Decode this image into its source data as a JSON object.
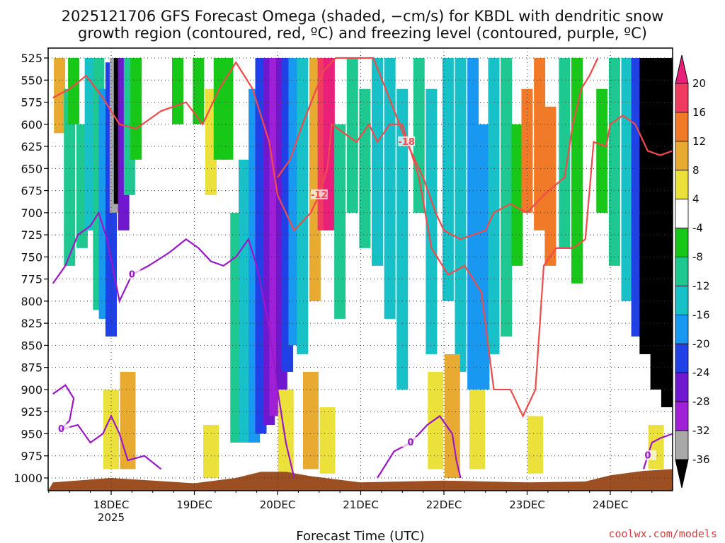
{
  "chart_data": {
    "type": "heatmap",
    "title_line1": "2025121706 GFS Forecast Omega (shaded, −cm/s) for KBDL with dendritic snow",
    "title_line2": "growth region (contoured, red, ºC) and freezing level (contoured, purple, ºC)",
    "xlabel": "Forecast Time (UTC)",
    "credit": "coolwx.com/models",
    "run": "2025121706",
    "model": "GFS",
    "station": "KBDL",
    "x_range_days": [
      -0.7,
      6.75
    ],
    "x_ticks": [
      {
        "pos": 0,
        "label": "18DEC",
        "sub": "2025"
      },
      {
        "pos": 1,
        "label": "19DEC",
        "sub": ""
      },
      {
        "pos": 2,
        "label": "20DEC",
        "sub": ""
      },
      {
        "pos": 3,
        "label": "21DEC",
        "sub": ""
      },
      {
        "pos": 4,
        "label": "22DEC",
        "sub": ""
      },
      {
        "pos": 5,
        "label": "23DEC",
        "sub": ""
      },
      {
        "pos": 6,
        "label": "24DEC",
        "sub": ""
      }
    ],
    "y_range_hpa": [
      1010,
      515
    ],
    "y_ticks": [
      "525",
      "550",
      "575",
      "600",
      "625",
      "650",
      "675",
      "700",
      "725",
      "750",
      "775",
      "800",
      "825",
      "850",
      "875",
      "900",
      "925",
      "950",
      "975",
      "1000"
    ],
    "colorbar": {
      "min": -36,
      "max": 20,
      "labels": [
        "20",
        "16",
        "12",
        "8",
        "4",
        "-4",
        "-8",
        "-12",
        "-16",
        "-20",
        "-24",
        "-28",
        "-32",
        "-36"
      ],
      "bins": [
        {
          "lo": 16,
          "hi": 20,
          "color": "#f03a60"
        },
        {
          "lo": 12,
          "hi": 16,
          "color": "#f07a28"
        },
        {
          "lo": 8,
          "hi": 12,
          "color": "#e8aa30"
        },
        {
          "lo": 4,
          "hi": 8,
          "color": "#ece03a"
        },
        {
          "lo": -4,
          "hi": 4,
          "color": "#ffffff"
        },
        {
          "lo": -8,
          "hi": -4,
          "color": "#18c818"
        },
        {
          "lo": -12,
          "hi": -8,
          "color": "#1ec890"
        },
        {
          "lo": -16,
          "hi": -12,
          "color": "#18c0c8"
        },
        {
          "lo": -20,
          "hi": -16,
          "color": "#1898f0"
        },
        {
          "lo": -24,
          "hi": -20,
          "color": "#2040e8"
        },
        {
          "lo": -28,
          "hi": -24,
          "color": "#7018d0"
        },
        {
          "lo": -32,
          "hi": -28,
          "color": "#a020d8"
        },
        {
          "lo": -36,
          "hi": -32,
          "color": "#a8a8a8"
        }
      ],
      "over_color": "#e8207a",
      "under_color": "#000000"
    },
    "omega_columns": [
      {
        "t": -0.62,
        "p1": 525,
        "p2": 610,
        "v": 9
      },
      {
        "t": -0.5,
        "p1": 560,
        "p2": 760,
        "v": -10
      },
      {
        "t": -0.45,
        "p1": 525,
        "p2": 600,
        "v": -6
      },
      {
        "t": -0.35,
        "p1": 600,
        "p2": 740,
        "v": -9
      },
      {
        "t": -0.25,
        "p1": 525,
        "p2": 720,
        "v": -13
      },
      {
        "t": -0.15,
        "p1": 525,
        "p2": 810,
        "v": -12
      },
      {
        "t": -0.08,
        "p1": 560,
        "p2": 820,
        "v": -17
      },
      {
        "t": 0.0,
        "p1": 530,
        "p2": 840,
        "v": -24
      },
      {
        "t": 0.05,
        "p1": 525,
        "p2": 700,
        "v": -34
      },
      {
        "t": 0.1,
        "p1": 525,
        "p2": 690,
        "v": -40
      },
      {
        "t": 0.15,
        "p1": 525,
        "p2": 720,
        "v": -28
      },
      {
        "t": 0.22,
        "p1": 525,
        "p2": 680,
        "v": -12
      },
      {
        "t": 0.3,
        "p1": 525,
        "p2": 640,
        "v": -6
      },
      {
        "t": 0.8,
        "p1": 525,
        "p2": 600,
        "v": -6
      },
      {
        "t": 1.05,
        "p1": 525,
        "p2": 600,
        "v": -6
      },
      {
        "t": 1.2,
        "p1": 560,
        "p2": 680,
        "v": 6
      },
      {
        "t": 1.3,
        "p1": 525,
        "p2": 640,
        "v": -8
      },
      {
        "t": 1.4,
        "p1": 525,
        "p2": 640,
        "v": -6
      },
      {
        "t": 1.5,
        "p1": 700,
        "p2": 960,
        "v": -9
      },
      {
        "t": 1.6,
        "p1": 640,
        "p2": 960,
        "v": -13
      },
      {
        "t": 1.72,
        "p1": 560,
        "p2": 960,
        "v": -18
      },
      {
        "t": 1.8,
        "p1": 525,
        "p2": 950,
        "v": -22
      },
      {
        "t": 1.9,
        "p1": 525,
        "p2": 940,
        "v": -26
      },
      {
        "t": 1.97,
        "p1": 525,
        "p2": 930,
        "v": -29
      },
      {
        "t": 2.05,
        "p1": 525,
        "p2": 900,
        "v": -28
      },
      {
        "t": 2.12,
        "p1": 525,
        "p2": 880,
        "v": -22
      },
      {
        "t": 2.2,
        "p1": 525,
        "p2": 850,
        "v": -19
      },
      {
        "t": 2.3,
        "p1": 525,
        "p2": 860,
        "v": -13
      },
      {
        "t": 2.45,
        "p1": 525,
        "p2": 800,
        "v": 8
      },
      {
        "t": 2.55,
        "p1": 525,
        "p2": 720,
        "v": 19
      },
      {
        "t": 2.62,
        "p1": 525,
        "p2": 720,
        "v": 24
      },
      {
        "t": 2.75,
        "p1": 600,
        "p2": 820,
        "v": -10
      },
      {
        "t": 2.9,
        "p1": 525,
        "p2": 700,
        "v": -9
      },
      {
        "t": 3.05,
        "p1": 560,
        "p2": 740,
        "v": -12
      },
      {
        "t": 3.2,
        "p1": 525,
        "p2": 760,
        "v": -13
      },
      {
        "t": 3.35,
        "p1": 525,
        "p2": 820,
        "v": -14
      },
      {
        "t": 3.5,
        "p1": 560,
        "p2": 900,
        "v": -13
      },
      {
        "t": 3.7,
        "p1": 525,
        "p2": 700,
        "v": -11
      },
      {
        "t": 3.85,
        "p1": 560,
        "p2": 860,
        "v": -14
      },
      {
        "t": 4.05,
        "p1": 525,
        "p2": 800,
        "v": -13
      },
      {
        "t": 4.2,
        "p1": 525,
        "p2": 880,
        "v": -15
      },
      {
        "t": 4.35,
        "p1": 525,
        "p2": 900,
        "v": -17
      },
      {
        "t": 4.48,
        "p1": 600,
        "p2": 900,
        "v": -20
      },
      {
        "t": 4.6,
        "p1": 525,
        "p2": 860,
        "v": -15
      },
      {
        "t": 4.75,
        "p1": 525,
        "p2": 840,
        "v": -10
      },
      {
        "t": 4.88,
        "p1": 600,
        "p2": 760,
        "v": -8
      },
      {
        "t": 5.0,
        "p1": 560,
        "p2": 700,
        "v": 13
      },
      {
        "t": 5.15,
        "p1": 525,
        "p2": 720,
        "v": 14
      },
      {
        "t": 5.28,
        "p1": 580,
        "p2": 760,
        "v": 12
      },
      {
        "t": 5.45,
        "p1": 525,
        "p2": 740,
        "v": -9
      },
      {
        "t": 5.6,
        "p1": 525,
        "p2": 780,
        "v": -6
      },
      {
        "t": 5.9,
        "p1": 560,
        "p2": 700,
        "v": -6
      },
      {
        "t": 6.05,
        "p1": 525,
        "p2": 760,
        "v": -10
      },
      {
        "t": 6.2,
        "p1": 525,
        "p2": 800,
        "v": -13
      },
      {
        "t": 6.32,
        "p1": 525,
        "p2": 840,
        "v": -22
      },
      {
        "t": 6.42,
        "p1": 525,
        "p2": 860,
        "v": -40
      },
      {
        "t": 6.55,
        "p1": 525,
        "p2": 900,
        "v": -40
      },
      {
        "t": 6.68,
        "p1": 525,
        "p2": 920,
        "v": -40
      }
    ],
    "low_level_blobs": [
      {
        "t": 0.0,
        "p1": 900,
        "p2": 990,
        "v": 5
      },
      {
        "t": 0.2,
        "p1": 880,
        "p2": 990,
        "v": 9
      },
      {
        "t": 1.2,
        "p1": 940,
        "p2": 1000,
        "v": 5
      },
      {
        "t": 2.1,
        "p1": 900,
        "p2": 1000,
        "v": 6
      },
      {
        "t": 2.4,
        "p1": 880,
        "p2": 990,
        "v": 10
      },
      {
        "t": 2.6,
        "p1": 920,
        "p2": 995,
        "v": 7
      },
      {
        "t": 3.9,
        "p1": 880,
        "p2": 990,
        "v": 6
      },
      {
        "t": 4.1,
        "p1": 860,
        "p2": 1000,
        "v": 10
      },
      {
        "t": 4.4,
        "p1": 900,
        "p2": 990,
        "v": 5
      },
      {
        "t": 5.1,
        "p1": 930,
        "p2": 995,
        "v": 6
      },
      {
        "t": 6.55,
        "p1": 940,
        "p2": 990,
        "v": 6
      }
    ],
    "dgz_contours": [
      {
        "label": "-12",
        "points": [
          [
            -0.7,
            570
          ],
          [
            -0.5,
            560
          ],
          [
            -0.3,
            545
          ],
          [
            -0.1,
            570
          ],
          [
            0.1,
            600
          ],
          [
            0.3,
            605
          ],
          [
            0.6,
            585
          ],
          [
            0.9,
            575
          ],
          [
            1.1,
            600
          ],
          [
            1.3,
            560
          ],
          [
            1.5,
            530
          ],
          [
            1.7,
            560
          ],
          [
            1.9,
            620
          ],
          [
            2.0,
            680
          ],
          [
            2.2,
            720
          ],
          [
            2.4,
            700
          ],
          [
            2.5,
            680
          ],
          [
            2.6,
            650
          ],
          [
            2.65,
            600
          ],
          [
            2.8,
            610
          ],
          [
            2.95,
            620
          ],
          [
            3.1,
            600
          ],
          [
            3.2,
            620
          ],
          [
            3.35,
            600
          ],
          [
            3.5,
            600
          ],
          [
            3.7,
            660
          ],
          [
            3.85,
            740
          ],
          [
            4.05,
            770
          ],
          [
            4.25,
            760
          ],
          [
            4.45,
            790
          ],
          [
            4.6,
            900
          ],
          [
            4.8,
            900
          ],
          [
            4.95,
            930
          ],
          [
            5.1,
            900
          ],
          [
            5.2,
            760
          ],
          [
            5.35,
            740
          ],
          [
            5.55,
            740
          ],
          [
            5.7,
            730
          ],
          [
            5.8,
            620
          ],
          [
            5.95,
            625
          ],
          [
            6.0,
            600
          ],
          [
            6.15,
            590
          ],
          [
            6.3,
            600
          ],
          [
            6.45,
            630
          ],
          [
            6.6,
            635
          ],
          [
            6.75,
            630
          ]
        ]
      },
      {
        "label": "-18",
        "points": [
          [
            2.0,
            660
          ],
          [
            2.15,
            640
          ],
          [
            2.3,
            600
          ],
          [
            2.55,
            540
          ],
          [
            2.7,
            525
          ],
          [
            3.0,
            525
          ],
          [
            3.15,
            525
          ],
          [
            3.3,
            560
          ],
          [
            3.55,
            620
          ],
          [
            3.75,
            660
          ],
          [
            3.9,
            700
          ],
          [
            4.0,
            720
          ],
          [
            4.2,
            730
          ],
          [
            4.5,
            720
          ],
          [
            4.6,
            700
          ],
          [
            4.8,
            690
          ],
          [
            5.0,
            700
          ],
          [
            5.2,
            680
          ],
          [
            5.45,
            660
          ],
          [
            5.55,
            600
          ],
          [
            5.65,
            560
          ],
          [
            5.75,
            545
          ],
          [
            5.85,
            525
          ]
        ]
      }
    ],
    "freezing_contours": [
      {
        "label": "0",
        "points": [
          [
            -0.7,
            780
          ],
          [
            -0.55,
            760
          ],
          [
            -0.4,
            725
          ],
          [
            -0.25,
            715
          ],
          [
            -0.15,
            700
          ],
          [
            -0.05,
            730
          ],
          [
            0.1,
            800
          ],
          [
            0.25,
            770
          ],
          [
            0.45,
            760
          ],
          [
            0.7,
            745
          ],
          [
            0.9,
            730
          ],
          [
            1.05,
            740
          ],
          [
            1.2,
            755
          ],
          [
            1.35,
            760
          ],
          [
            1.5,
            750
          ],
          [
            1.65,
            730
          ],
          [
            1.75,
            760
          ],
          [
            1.9,
            830
          ],
          [
            2.0,
            900
          ],
          [
            2.1,
            960
          ],
          [
            2.2,
            1000
          ]
        ]
      },
      {
        "label": "0",
        "points": [
          [
            -0.7,
            905
          ],
          [
            -0.55,
            895
          ],
          [
            -0.45,
            910
          ],
          [
            -0.5,
            935
          ],
          [
            -0.6,
            945
          ],
          [
            -0.4,
            940
          ],
          [
            -0.25,
            960
          ],
          [
            -0.1,
            950
          ],
          [
            0.0,
            930
          ],
          [
            0.1,
            950
          ],
          [
            0.2,
            980
          ],
          [
            0.4,
            975
          ],
          [
            0.6,
            990
          ]
        ]
      },
      {
        "label": "0",
        "points": [
          [
            3.2,
            1000
          ],
          [
            3.4,
            970
          ],
          [
            3.6,
            960
          ],
          [
            3.8,
            940
          ],
          [
            3.95,
            930
          ],
          [
            4.1,
            950
          ],
          [
            4.15,
            980
          ],
          [
            4.2,
            1000
          ]
        ]
      },
      {
        "label": "0",
        "points": [
          [
            6.4,
            990
          ],
          [
            6.45,
            975
          ],
          [
            6.5,
            960
          ],
          [
            6.6,
            955
          ],
          [
            6.75,
            950
          ]
        ]
      }
    ]
  }
}
